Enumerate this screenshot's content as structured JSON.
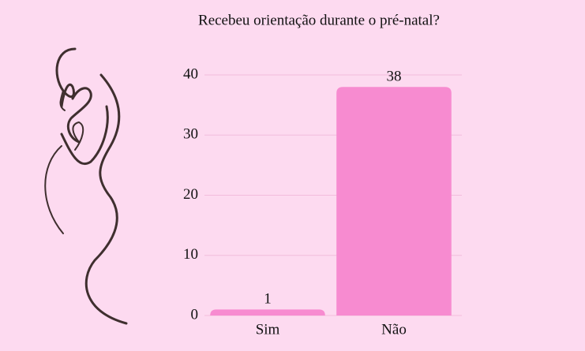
{
  "chart_data": {
    "type": "bar",
    "title": "Recebeu orientação durante o pré-natal?",
    "categories": [
      "Sim",
      "Não"
    ],
    "values": [
      1,
      38
    ],
    "color": "#f78bd0",
    "ylim": [
      0,
      40
    ],
    "yticks": [
      0,
      10,
      20,
      30,
      40
    ],
    "grid": true
  }
}
